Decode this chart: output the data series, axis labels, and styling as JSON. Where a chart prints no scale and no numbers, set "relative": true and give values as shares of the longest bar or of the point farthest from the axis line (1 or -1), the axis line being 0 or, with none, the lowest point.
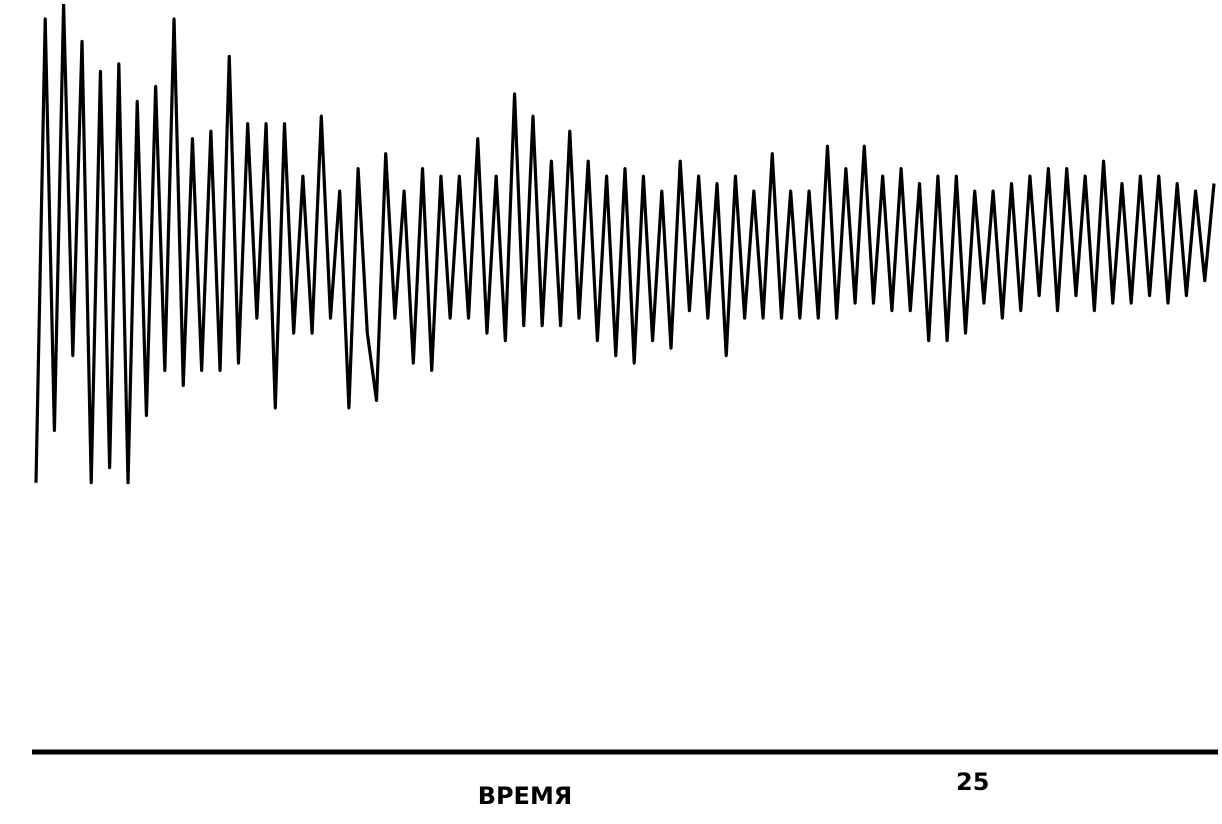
{
  "chart_data": {
    "type": "line",
    "xlabel": "ВРЕМЯ",
    "relative": true,
    "annotations": [
      "25"
    ],
    "categories": [
      null,
      null,
      null,
      null,
      null,
      null,
      null,
      null,
      null,
      null,
      null,
      null,
      null,
      null,
      null,
      null,
      null,
      null,
      null,
      null,
      null,
      null,
      null,
      null,
      null,
      null,
      null,
      null,
      null,
      null,
      null,
      null,
      null,
      null,
      null,
      null,
      null,
      null,
      null,
      null,
      null,
      null,
      null,
      null,
      null,
      null,
      null,
      null,
      null,
      null,
      null,
      null,
      null,
      null,
      null,
      null,
      null,
      null,
      null,
      null,
      null,
      null,
      null,
      null,
      null,
      null,
      null,
      null,
      null,
      null,
      null,
      null,
      null,
      null,
      null,
      null,
      null,
      null,
      null,
      null,
      null,
      null,
      null,
      null,
      null,
      null,
      null,
      null,
      null,
      null,
      null,
      null,
      null,
      null,
      null,
      null,
      null,
      null,
      null,
      null,
      null,
      null,
      null,
      null,
      null,
      null,
      null,
      null,
      null,
      null,
      null,
      null,
      null,
      null,
      null,
      null,
      null,
      null,
      null,
      null,
      null,
      null,
      null,
      null,
      null,
      null,
      null,
      null,
      null
    ],
    "series": [
      {
        "color": "#000000",
        "values": [
          0.36,
          0.98,
          0.43,
          1.0,
          0.53,
          0.95,
          0.36,
          0.91,
          0.38,
          0.92,
          0.36,
          0.87,
          0.45,
          0.89,
          0.51,
          0.98,
          0.49,
          0.82,
          0.51,
          0.83,
          0.51,
          0.93,
          0.52,
          0.84,
          0.58,
          0.84,
          0.46,
          0.84,
          0.56,
          0.77,
          0.56,
          0.85,
          0.58,
          0.75,
          0.46,
          0.78,
          0.56,
          0.47,
          0.8,
          0.58,
          0.75,
          0.52,
          0.78,
          0.51,
          0.77,
          0.58,
          0.77,
          0.58,
          0.82,
          0.56,
          0.77,
          0.55,
          0.88,
          0.57,
          0.85,
          0.57,
          0.79,
          0.57,
          0.83,
          0.58,
          0.79,
          0.55,
          0.77,
          0.53,
          0.78,
          0.52,
          0.77,
          0.55,
          0.75,
          0.54,
          0.79,
          0.59,
          0.77,
          0.58,
          0.76,
          0.53,
          0.77,
          0.58,
          0.75,
          0.58,
          0.8,
          0.58,
          0.75,
          0.58,
          0.75,
          0.58,
          0.81,
          0.58,
          0.78,
          0.6,
          0.81,
          0.6,
          0.77,
          0.59,
          0.78,
          0.59,
          0.76,
          0.55,
          0.77,
          0.55,
          0.77,
          0.56,
          0.75,
          0.6,
          0.75,
          0.58,
          0.76,
          0.59,
          0.77,
          0.61,
          0.78,
          0.59,
          0.78,
          0.61,
          0.77,
          0.59,
          0.79,
          0.6,
          0.76,
          0.6,
          0.77,
          0.61,
          0.77,
          0.6,
          0.76,
          0.61,
          0.75,
          0.63,
          0.76
        ]
      }
    ]
  }
}
